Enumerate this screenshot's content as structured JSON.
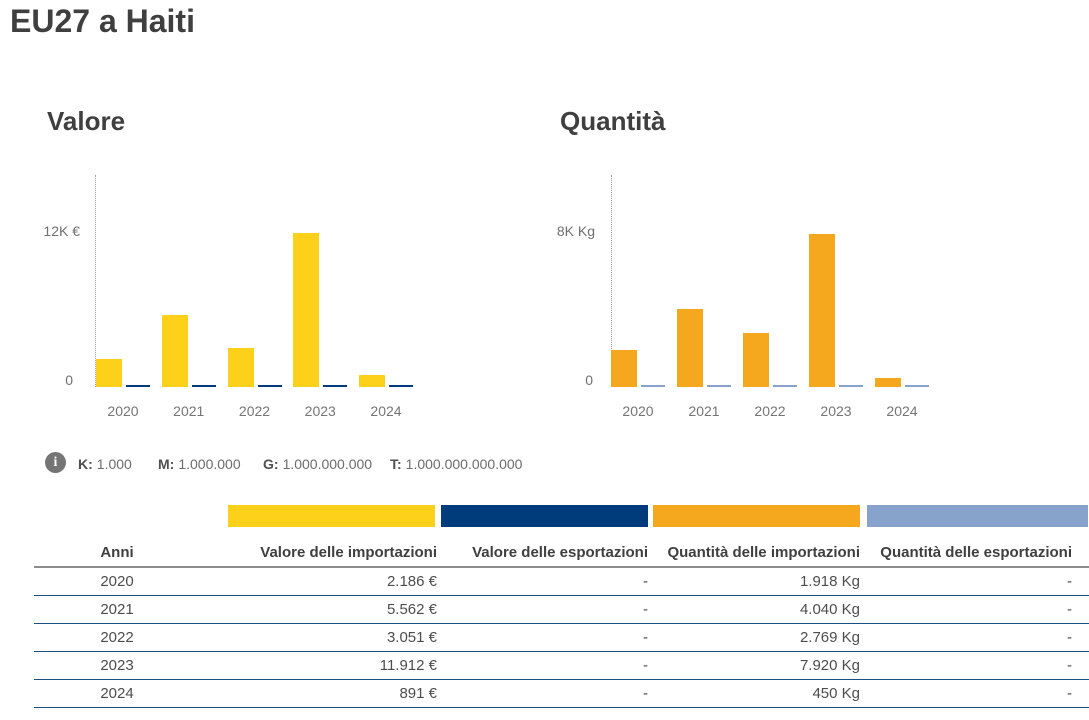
{
  "page_title": "EU27 a Haiti",
  "chart_data": [
    {
      "type": "bar",
      "title": "Valore",
      "categories": [
        "2020",
        "2021",
        "2022",
        "2023",
        "2024"
      ],
      "series": [
        {
          "name": "Valore delle importazioni",
          "color": "#FDD11A",
          "values": [
            2186,
            5562,
            3051,
            11912,
            891
          ]
        },
        {
          "name": "Valore delle esportazioni",
          "color": "#003B7C",
          "values": [
            0,
            0,
            0,
            0,
            0
          ]
        }
      ],
      "unit": "€",
      "y_axis": {
        "top_tick_label": "12K €",
        "top_tick_value": 12000,
        "zero_label": "0"
      },
      "ylim": [
        0,
        13000
      ],
      "grid": false,
      "legend_position": "none"
    },
    {
      "type": "bar",
      "title": "Quantità",
      "categories": [
        "2020",
        "2021",
        "2022",
        "2023",
        "2024"
      ],
      "series": [
        {
          "name": "Quantità delle importazioni",
          "color": "#F5A81E",
          "values": [
            1918,
            4040,
            2769,
            7920,
            450
          ]
        },
        {
          "name": "Quantità delle esportazioni",
          "color": "#87A3CB",
          "values": [
            0,
            0,
            0,
            0,
            0
          ]
        }
      ],
      "unit": "Kg",
      "y_axis": {
        "top_tick_label": "8K Kg",
        "top_tick_value": 8000,
        "zero_label": "0"
      },
      "ylim": [
        0,
        8700
      ],
      "grid": false,
      "legend_position": "none"
    }
  ],
  "scale_info": {
    "icon_glyph": "i",
    "items": [
      {
        "label": "K:",
        "value": "1.000"
      },
      {
        "label": "M:",
        "value": "1.000.000"
      },
      {
        "label": "G:",
        "value": "1.000.000.000"
      },
      {
        "label": "T:",
        "value": "1.000.000.000.000"
      }
    ]
  },
  "column_legend_colors": [
    "#FDD11A",
    "#003B7C",
    "#F5A81E",
    "#87A3CB"
  ],
  "table": {
    "headers": [
      "Anni",
      "Valore delle importazioni",
      "Valore delle esportazioni",
      "Quantità delle importazioni",
      "Quantità delle esportazioni"
    ],
    "rows": [
      [
        "2020",
        "2.186 €",
        "-",
        "1.918 Kg",
        "-"
      ],
      [
        "2021",
        "5.562 €",
        "-",
        "4.040 Kg",
        "-"
      ],
      [
        "2022",
        "3.051 €",
        "-",
        "2.769 Kg",
        "-"
      ],
      [
        "2023",
        "11.912 €",
        "-",
        "7.920 Kg",
        "-"
      ],
      [
        "2024",
        "891 €",
        "-",
        "450 Kg",
        "-"
      ]
    ]
  },
  "colors": {
    "title_text": "#3F3F3F",
    "axis_text": "#707070",
    "cell_text": "#4D4D4D",
    "row_separator": "#1C4F82",
    "header_rule": "#8C8C8C",
    "info_icon_bg": "#757575"
  }
}
